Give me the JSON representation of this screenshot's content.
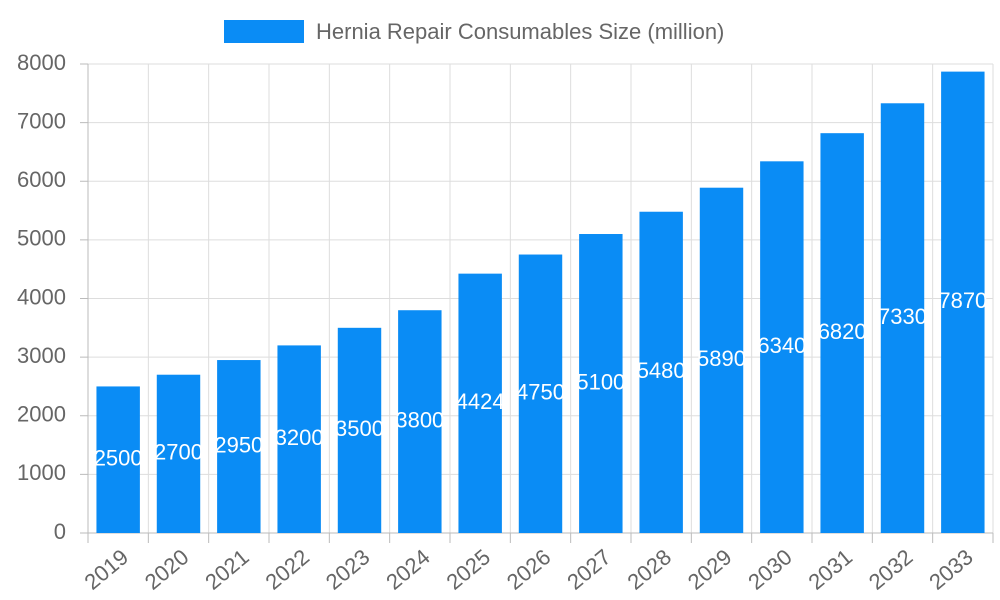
{
  "chart_data": {
    "type": "bar",
    "categories": [
      "2019",
      "2020",
      "2021",
      "2022",
      "2023",
      "2024",
      "2025",
      "2026",
      "2027",
      "2028",
      "2029",
      "2030",
      "2031",
      "2032",
      "2033"
    ],
    "series": [
      {
        "name": "Hernia Repair Consumables Size (million)",
        "color": "#0a8cf5",
        "values": [
          2500,
          2700,
          2950,
          3200,
          3500,
          3800,
          4424,
          4750,
          5100,
          5480,
          5890,
          6340,
          6820,
          7330,
          7870
        ]
      }
    ],
    "ylim": [
      0,
      8000
    ],
    "yticks": [
      0,
      1000,
      2000,
      3000,
      4000,
      5000,
      6000,
      7000,
      8000
    ],
    "grid": true,
    "legend": "top"
  }
}
